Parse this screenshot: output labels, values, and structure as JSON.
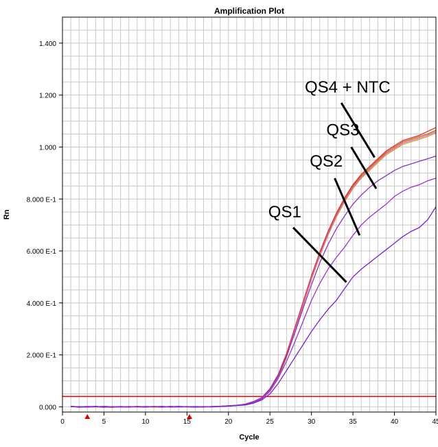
{
  "chart_data": {
    "type": "line",
    "title": "Amplification Plot",
    "xlabel": "Cycle",
    "ylabel": "Rn",
    "xlim": [
      0,
      45
    ],
    "ylim": [
      -0.02,
      1.5
    ],
    "grid": true,
    "x_ticks": [
      0,
      5,
      10,
      15,
      20,
      25,
      30,
      35,
      40,
      45
    ],
    "x_tick_labels": [
      "0",
      "5",
      "10",
      "15",
      "20",
      "25",
      "30",
      "35",
      "40",
      "45"
    ],
    "y_ticks": [
      0,
      0.2,
      0.4,
      0.6,
      0.8,
      1.0,
      1.2,
      1.4
    ],
    "y_tick_labels": [
      "0.000",
      "2.000 E-1",
      "4.000 E-1",
      "6.000 E-1",
      "8.000 E-1",
      "1.000",
      "1.200",
      "1.400"
    ],
    "threshold": {
      "value": 0.04,
      "color": "#ff0000"
    },
    "baseline_markers": [
      3,
      15.3
    ],
    "x": [
      1,
      2,
      3,
      4,
      5,
      6,
      7,
      8,
      9,
      10,
      11,
      12,
      13,
      14,
      15,
      16,
      17,
      18,
      19,
      20,
      21,
      22,
      23,
      24,
      25,
      26,
      27,
      28,
      29,
      30,
      31,
      32,
      33,
      34,
      35,
      36,
      37,
      38,
      39,
      40,
      41,
      42,
      43,
      44,
      45
    ],
    "series": [
      {
        "color": "#cc6600",
        "values": [
          0.003,
          -0.002,
          0.001,
          0.0,
          -0.002,
          0.001,
          0.0,
          -0.001,
          0.002,
          0.0,
          -0.001,
          0.0,
          0.001,
          -0.001,
          0.0,
          0.001,
          0.0,
          0.0,
          0.002,
          0.004,
          0.006,
          0.009,
          0.018,
          0.032,
          0.065,
          0.12,
          0.2,
          0.3,
          0.4,
          0.5,
          0.59,
          0.67,
          0.74,
          0.8,
          0.85,
          0.89,
          0.92,
          0.95,
          0.98,
          1.0,
          1.02,
          1.03,
          1.04,
          1.05,
          1.065
        ]
      },
      {
        "color": "#dd3333",
        "values": [
          0.002,
          0.0,
          -0.001,
          0.001,
          0.0,
          -0.002,
          0.001,
          0.0,
          0.0,
          0.001,
          0.0,
          -0.001,
          0.0,
          0.0,
          0.001,
          0.0,
          -0.001,
          0.001,
          0.002,
          0.004,
          0.006,
          0.01,
          0.02,
          0.035,
          0.07,
          0.125,
          0.205,
          0.305,
          0.405,
          0.505,
          0.595,
          0.675,
          0.745,
          0.805,
          0.855,
          0.895,
          0.925,
          0.955,
          0.985,
          1.005,
          1.025,
          1.035,
          1.045,
          1.06,
          1.075
        ]
      },
      {
        "color": "#d4a020",
        "values": [
          0.0,
          0.001,
          0.0,
          -0.001,
          0.002,
          0.0,
          -0.001,
          0.001,
          0.0,
          -0.001,
          0.002,
          0.0,
          0.0,
          0.001,
          -0.001,
          0.0,
          0.001,
          0.0,
          0.001,
          0.003,
          0.005,
          0.008,
          0.016,
          0.03,
          0.06,
          0.11,
          0.19,
          0.29,
          0.39,
          0.49,
          0.58,
          0.66,
          0.73,
          0.79,
          0.84,
          0.88,
          0.91,
          0.94,
          0.97,
          0.99,
          1.01,
          1.02,
          1.03,
          1.04,
          1.055
        ]
      },
      {
        "color": "#cc66cc",
        "values": [
          0.001,
          0.0,
          0.002,
          0.0,
          -0.001,
          0.0,
          0.001,
          0.0,
          -0.001,
          0.002,
          0.0,
          0.001,
          0.0,
          -0.001,
          0.0,
          0.002,
          0.0,
          -0.001,
          0.002,
          0.004,
          0.006,
          0.009,
          0.017,
          0.03,
          0.062,
          0.115,
          0.195,
          0.295,
          0.395,
          0.495,
          0.585,
          0.665,
          0.735,
          0.795,
          0.845,
          0.885,
          0.915,
          0.945,
          0.975,
          0.995,
          1.015,
          1.025,
          1.035,
          1.045,
          1.06
        ]
      },
      {
        "color": "#8833bb",
        "values": [
          0.002,
          -0.001,
          0.0,
          0.001,
          0.0,
          0.0,
          -0.001,
          0.001,
          0.0,
          0.0,
          0.001,
          -0.001,
          0.002,
          0.0,
          0.0,
          -0.001,
          0.001,
          0.0,
          0.002,
          0.004,
          0.006,
          0.01,
          0.02,
          0.035,
          0.068,
          0.12,
          0.195,
          0.285,
          0.38,
          0.47,
          0.555,
          0.625,
          0.685,
          0.735,
          0.78,
          0.815,
          0.845,
          0.87,
          0.89,
          0.91,
          0.925,
          0.935,
          0.945,
          0.955,
          0.965
        ]
      },
      {
        "color": "#9933cc",
        "values": [
          0.0,
          0.001,
          -0.001,
          0.0,
          0.002,
          0.0,
          0.0,
          -0.001,
          0.001,
          0.0,
          0.0,
          0.002,
          -0.001,
          0.0,
          0.001,
          0.0,
          0.0,
          0.001,
          0.002,
          0.003,
          0.005,
          0.008,
          0.016,
          0.03,
          0.06,
          0.11,
          0.175,
          0.25,
          0.33,
          0.41,
          0.475,
          0.53,
          0.575,
          0.615,
          0.66,
          0.7,
          0.73,
          0.755,
          0.78,
          0.81,
          0.83,
          0.845,
          0.855,
          0.87,
          0.88
        ]
      },
      {
        "color": "#7722cc",
        "values": [
          0.001,
          0.0,
          0.0,
          0.002,
          -0.001,
          0.0,
          0.001,
          0.0,
          0.0,
          -0.001,
          0.001,
          0.0,
          0.0,
          0.002,
          0.0,
          -0.001,
          0.0,
          0.001,
          0.001,
          0.003,
          0.005,
          0.007,
          0.014,
          0.026,
          0.05,
          0.09,
          0.14,
          0.19,
          0.24,
          0.29,
          0.335,
          0.375,
          0.41,
          0.455,
          0.5,
          0.53,
          0.555,
          0.58,
          0.605,
          0.63,
          0.655,
          0.675,
          0.69,
          0.72,
          0.77
        ]
      }
    ],
    "annotations": [
      {
        "text": "QS4 + NTC",
        "x": 29.2,
        "y": 1.21,
        "anchor": "start",
        "pointer": [
          [
            33.6,
            1.17
          ],
          [
            37.6,
            0.96
          ]
        ]
      },
      {
        "text": "QS3",
        "x": 31.8,
        "y": 1.045,
        "anchor": "start",
        "pointer": [
          [
            34.8,
            1.0
          ],
          [
            37.8,
            0.84
          ]
        ]
      },
      {
        "text": "QS2",
        "x": 29.8,
        "y": 0.925,
        "anchor": "start",
        "pointer": [
          [
            32.8,
            0.88
          ],
          [
            35.8,
            0.66
          ]
        ]
      },
      {
        "text": "QS1",
        "x": 24.8,
        "y": 0.73,
        "anchor": "start",
        "pointer": [
          [
            27.8,
            0.69
          ],
          [
            34.2,
            0.48
          ]
        ]
      }
    ]
  }
}
